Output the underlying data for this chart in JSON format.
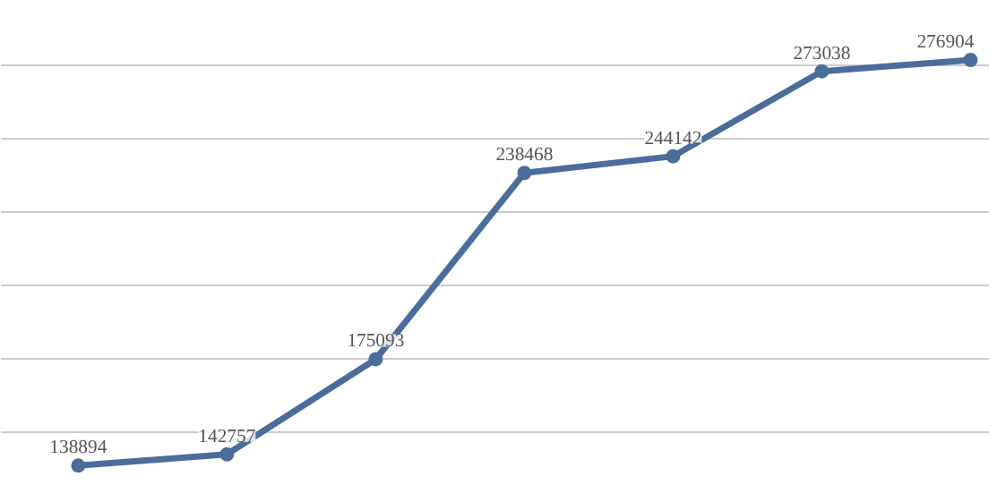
{
  "chart_data": {
    "type": "line",
    "categories": [
      null,
      null,
      null,
      null,
      null,
      null,
      null
    ],
    "series": [
      {
        "color": "#4a6d9c",
        "values": [
          138894,
          142757,
          175093,
          238468,
          244142,
          273038,
          276904
        ]
      }
    ],
    "ylim": [
      132000,
      297000
    ],
    "yticks": [
      {
        "value": 150000,
        "label": null
      },
      {
        "value": 175000,
        "label": null
      },
      {
        "value": 200000,
        "label": null
      },
      {
        "value": 225000,
        "label": null
      },
      {
        "value": 250000,
        "label": null
      },
      {
        "value": 275000,
        "label": null
      }
    ],
    "grid": "y",
    "tick_labels": false,
    "marker": "circle",
    "line_style": "solid",
    "data_labels": true
  }
}
